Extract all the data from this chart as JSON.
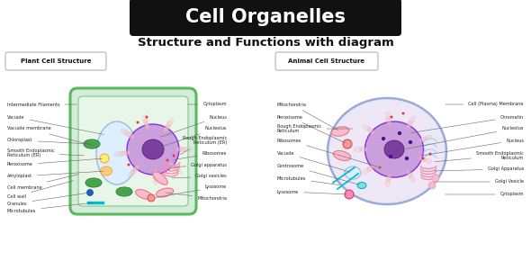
{
  "title": "Cell Organelles",
  "subtitle": "Structure and Functions with diagram",
  "title_bg": "#111111",
  "title_color": "#ffffff",
  "subtitle_color": "#111111",
  "bg_color": "#ffffff",
  "plant_label": "Plant Cell Structure",
  "animal_label": "Animal Cell Structure",
  "figw": 5.9,
  "figh": 2.9,
  "dpi": 100
}
